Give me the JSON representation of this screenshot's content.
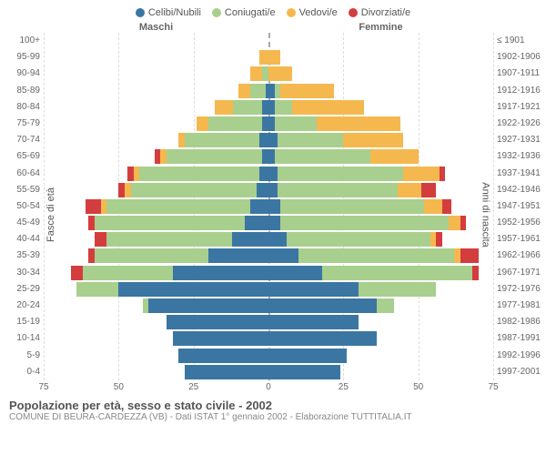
{
  "legend": {
    "items": [
      {
        "label": "Celibi/Nubili",
        "color": "#3b76a3"
      },
      {
        "label": "Coniugati/e",
        "color": "#a8cf8e"
      },
      {
        "label": "Vedovi/e",
        "color": "#f5b84f"
      },
      {
        "label": "Divorziati/e",
        "color": "#d43d3d"
      }
    ]
  },
  "gender": {
    "male": "Maschi",
    "female": "Femmine"
  },
  "axes": {
    "y_left_title": "Fasce di età",
    "y_right_title": "Anni di nascita",
    "x_max": 75,
    "x_ticks": [
      75,
      50,
      25,
      0,
      25,
      50,
      75
    ]
  },
  "colors": {
    "single": "#3b76a3",
    "married": "#a8cf8e",
    "widowed": "#f5b84f",
    "divorced": "#d43d3d",
    "grid": "#dddddd",
    "center": "#aaaaaa",
    "text": "#666666"
  },
  "rows": [
    {
      "age": "100+",
      "birth": "≤ 1901",
      "m": {
        "s": 0,
        "m": 0,
        "w": 0,
        "d": 0
      },
      "f": {
        "s": 0,
        "m": 0,
        "w": 0,
        "d": 0
      }
    },
    {
      "age": "95-99",
      "birth": "1902-1906",
      "m": {
        "s": 0,
        "m": 0,
        "w": 3,
        "d": 0
      },
      "f": {
        "s": 0,
        "m": 0,
        "w": 4,
        "d": 0
      }
    },
    {
      "age": "90-94",
      "birth": "1907-1911",
      "m": {
        "s": 0,
        "m": 2,
        "w": 4,
        "d": 0
      },
      "f": {
        "s": 0,
        "m": 0,
        "w": 8,
        "d": 0
      }
    },
    {
      "age": "85-89",
      "birth": "1912-1916",
      "m": {
        "s": 1,
        "m": 5,
        "w": 4,
        "d": 0
      },
      "f": {
        "s": 2,
        "m": 2,
        "w": 18,
        "d": 0
      }
    },
    {
      "age": "80-84",
      "birth": "1917-1921",
      "m": {
        "s": 2,
        "m": 10,
        "w": 6,
        "d": 0
      },
      "f": {
        "s": 2,
        "m": 6,
        "w": 24,
        "d": 0
      }
    },
    {
      "age": "75-79",
      "birth": "1922-1926",
      "m": {
        "s": 2,
        "m": 18,
        "w": 4,
        "d": 0
      },
      "f": {
        "s": 2,
        "m": 14,
        "w": 28,
        "d": 0
      }
    },
    {
      "age": "70-74",
      "birth": "1927-1931",
      "m": {
        "s": 3,
        "m": 25,
        "w": 2,
        "d": 0
      },
      "f": {
        "s": 3,
        "m": 22,
        "w": 20,
        "d": 0
      }
    },
    {
      "age": "65-69",
      "birth": "1932-1936",
      "m": {
        "s": 2,
        "m": 32,
        "w": 2,
        "d": 2
      },
      "f": {
        "s": 2,
        "m": 32,
        "w": 16,
        "d": 0
      }
    },
    {
      "age": "60-64",
      "birth": "1937-1941",
      "m": {
        "s": 3,
        "m": 40,
        "w": 2,
        "d": 2
      },
      "f": {
        "s": 3,
        "m": 42,
        "w": 12,
        "d": 2
      }
    },
    {
      "age": "55-59",
      "birth": "1942-1946",
      "m": {
        "s": 4,
        "m": 42,
        "w": 2,
        "d": 2
      },
      "f": {
        "s": 3,
        "m": 40,
        "w": 8,
        "d": 5
      }
    },
    {
      "age": "50-54",
      "birth": "1947-1951",
      "m": {
        "s": 6,
        "m": 48,
        "w": 2,
        "d": 5
      },
      "f": {
        "s": 4,
        "m": 48,
        "w": 6,
        "d": 3
      }
    },
    {
      "age": "45-49",
      "birth": "1952-1956",
      "m": {
        "s": 8,
        "m": 50,
        "w": 0,
        "d": 2
      },
      "f": {
        "s": 4,
        "m": 56,
        "w": 4,
        "d": 2
      }
    },
    {
      "age": "40-44",
      "birth": "1957-1961",
      "m": {
        "s": 12,
        "m": 42,
        "w": 0,
        "d": 4
      },
      "f": {
        "s": 6,
        "m": 48,
        "w": 2,
        "d": 2
      }
    },
    {
      "age": "35-39",
      "birth": "1962-1966",
      "m": {
        "s": 20,
        "m": 38,
        "w": 0,
        "d": 2
      },
      "f": {
        "s": 10,
        "m": 52,
        "w": 2,
        "d": 6
      }
    },
    {
      "age": "30-34",
      "birth": "1967-1971",
      "m": {
        "s": 32,
        "m": 30,
        "w": 0,
        "d": 4
      },
      "f": {
        "s": 18,
        "m": 50,
        "w": 0,
        "d": 2
      }
    },
    {
      "age": "25-29",
      "birth": "1972-1976",
      "m": {
        "s": 50,
        "m": 14,
        "w": 0,
        "d": 0
      },
      "f": {
        "s": 30,
        "m": 26,
        "w": 0,
        "d": 0
      }
    },
    {
      "age": "20-24",
      "birth": "1977-1981",
      "m": {
        "s": 40,
        "m": 2,
        "w": 0,
        "d": 0
      },
      "f": {
        "s": 36,
        "m": 6,
        "w": 0,
        "d": 0
      }
    },
    {
      "age": "15-19",
      "birth": "1982-1986",
      "m": {
        "s": 34,
        "m": 0,
        "w": 0,
        "d": 0
      },
      "f": {
        "s": 30,
        "m": 0,
        "w": 0,
        "d": 0
      }
    },
    {
      "age": "10-14",
      "birth": "1987-1991",
      "m": {
        "s": 32,
        "m": 0,
        "w": 0,
        "d": 0
      },
      "f": {
        "s": 36,
        "m": 0,
        "w": 0,
        "d": 0
      }
    },
    {
      "age": "5-9",
      "birth": "1992-1996",
      "m": {
        "s": 30,
        "m": 0,
        "w": 0,
        "d": 0
      },
      "f": {
        "s": 26,
        "m": 0,
        "w": 0,
        "d": 0
      }
    },
    {
      "age": "0-4",
      "birth": "1997-2001",
      "m": {
        "s": 28,
        "m": 0,
        "w": 0,
        "d": 0
      },
      "f": {
        "s": 24,
        "m": 0,
        "w": 0,
        "d": 0
      }
    }
  ],
  "caption": {
    "title": "Popolazione per età, sesso e stato civile - 2002",
    "subtitle": "COMUNE DI BEURA-CARDEZZA (VB) - Dati ISTAT 1° gennaio 2002 - Elaborazione TUTTITALIA.IT"
  }
}
